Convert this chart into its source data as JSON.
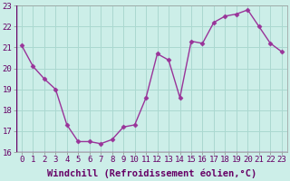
{
  "x": [
    0,
    1,
    2,
    3,
    4,
    5,
    6,
    7,
    8,
    9,
    10,
    11,
    12,
    13,
    14,
    15,
    16,
    17,
    18,
    19,
    20,
    21,
    22,
    23
  ],
  "y": [
    21.1,
    20.1,
    19.5,
    19.0,
    17.3,
    16.5,
    16.5,
    16.4,
    16.6,
    17.2,
    17.3,
    18.6,
    20.7,
    20.4,
    18.6,
    21.3,
    21.2,
    22.2,
    22.5,
    22.6,
    22.8,
    22.0,
    21.2,
    20.8
  ],
  "line_color": "#993399",
  "marker": "D",
  "marker_size": 2.5,
  "bg_color": "#cceee8",
  "grid_color": "#aad8d0",
  "xlabel": "Windchill (Refroidissement éolien,°C)",
  "ylim": [
    16,
    23
  ],
  "xlim_min": -0.5,
  "xlim_max": 23.5,
  "yticks": [
    16,
    17,
    18,
    19,
    20,
    21,
    22,
    23
  ],
  "xticks": [
    0,
    1,
    2,
    3,
    4,
    5,
    6,
    7,
    8,
    9,
    10,
    11,
    12,
    13,
    14,
    15,
    16,
    17,
    18,
    19,
    20,
    21,
    22,
    23
  ],
  "tick_label_fontsize": 6.5,
  "xlabel_fontsize": 7.5,
  "line_width": 1.0
}
